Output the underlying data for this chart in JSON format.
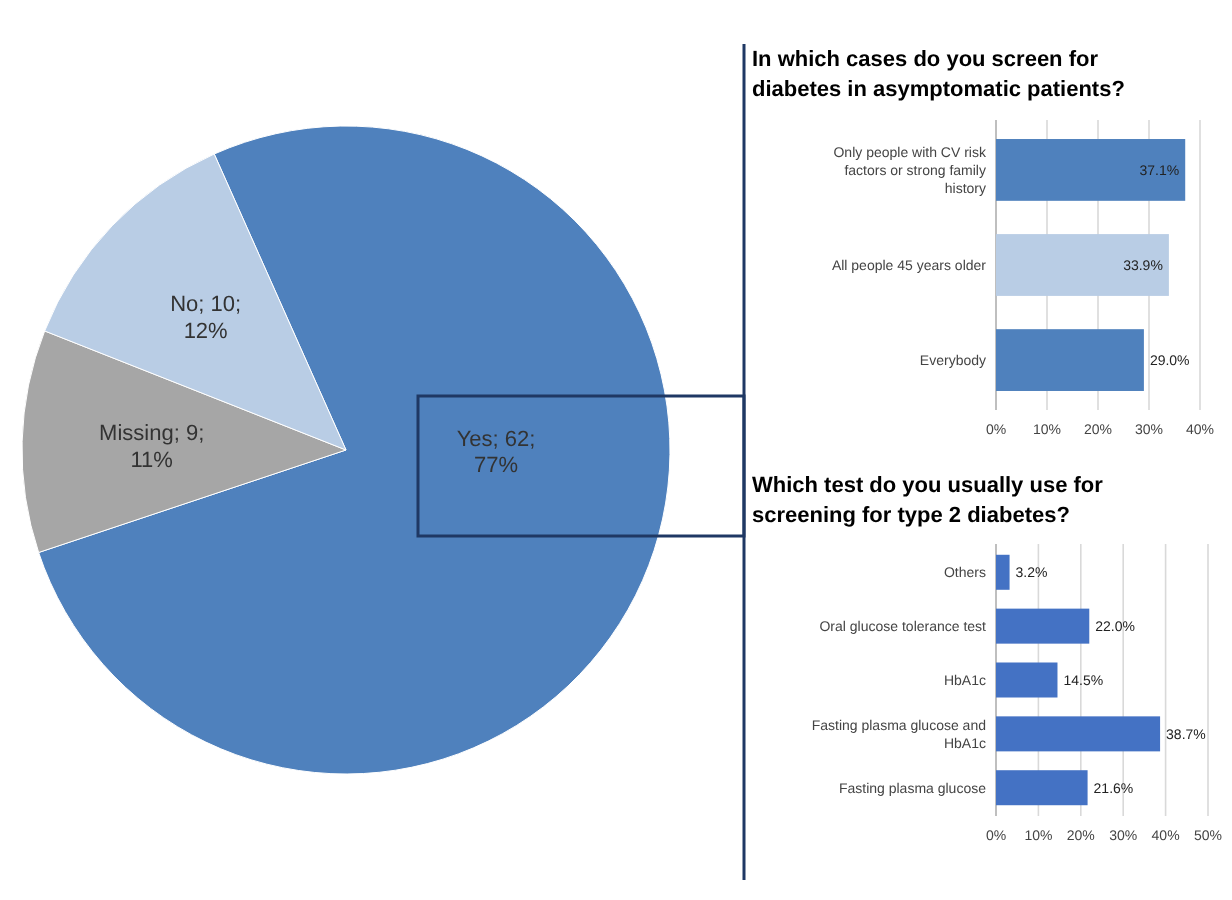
{
  "chart_data": [
    {
      "type": "pie",
      "categories": [
        "Yes",
        "Missing",
        "No"
      ],
      "values": [
        62,
        9,
        10
      ],
      "value_labels": [
        "62; 77%",
        "9; 11%",
        "10; 12%"
      ],
      "colors": [
        "#4f81bd",
        "#a6a6a6",
        "#b9cde5"
      ]
    },
    {
      "type": "bar",
      "orientation": "horizontal",
      "title": "In which cases do you screen for diabetes in asymptomatic patients?",
      "categories": [
        "Only people with CV risk factors or strong family history",
        "All people 45 years older",
        "Everybody"
      ],
      "values": [
        37.1,
        33.9,
        29.0
      ],
      "colors": [
        "#4f81bd",
        "#b9cde5",
        "#4f81bd"
      ],
      "value_labels": [
        "37.1%",
        "33.9%",
        "29.0%"
      ],
      "xlim": [
        0,
        40
      ],
      "xticks": [
        {
          "value": 0,
          "label": "0%"
        },
        {
          "value": 10,
          "label": "10%"
        },
        {
          "value": 20,
          "label": "20%"
        },
        {
          "value": 30,
          "label": "30%"
        },
        {
          "value": 40,
          "label": "40%"
        }
      ],
      "grid": "x"
    },
    {
      "type": "bar",
      "orientation": "horizontal",
      "title": "Which test do you usually use for screening for type 2 diabetes?",
      "categories": [
        "Others",
        "Oral glucose tolerance test",
        "HbA1c",
        "Fasting plasma glucose and HbA1c",
        "Fasting plasma glucose"
      ],
      "values": [
        3.2,
        22.0,
        14.5,
        38.7,
        21.6
      ],
      "color": "#4472c4",
      "value_labels": [
        "3.2%",
        "22.0%",
        "14.5%",
        "38.7%",
        "21.6%"
      ],
      "xlim": [
        0,
        50
      ],
      "xticks": [
        {
          "value": 0,
          "label": "0%"
        },
        {
          "value": 10,
          "label": "10%"
        },
        {
          "value": 20,
          "label": "20%"
        },
        {
          "value": 30,
          "label": "30%"
        },
        {
          "value": 40,
          "label": "40%"
        },
        {
          "value": 50,
          "label": "50%"
        }
      ],
      "grid": "x"
    }
  ]
}
